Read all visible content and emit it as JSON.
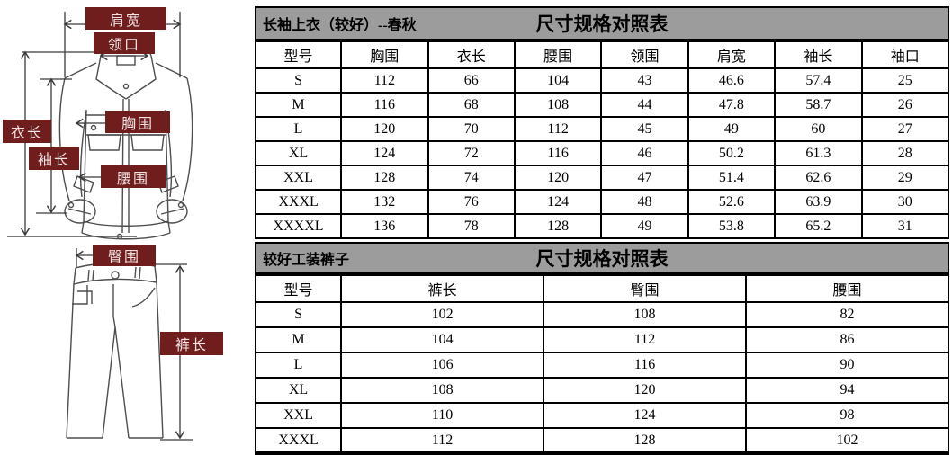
{
  "diagram": {
    "jacket_labels": {
      "shoulder_width": "肩宽",
      "collar": "领口",
      "chest": "胸围",
      "jacket_length": "衣长",
      "sleeve_length": "袖长",
      "waist": "腰围"
    },
    "pants_labels": {
      "hip": "臀围",
      "pants_length": "裤长"
    }
  },
  "jacket_table": {
    "title": "长袖上衣（较好）--春秋",
    "heading": "尺寸规格对照表",
    "columns": [
      "型号",
      "胸围",
      "衣长",
      "腰围",
      "领围",
      "肩宽",
      "袖长",
      "袖口"
    ],
    "rows": [
      [
        "S",
        "112",
        "66",
        "104",
        "43",
        "46.6",
        "57.4",
        "25"
      ],
      [
        "M",
        "116",
        "68",
        "108",
        "44",
        "47.8",
        "58.7",
        "26"
      ],
      [
        "L",
        "120",
        "70",
        "112",
        "45",
        "49",
        "60",
        "27"
      ],
      [
        "XL",
        "124",
        "72",
        "116",
        "46",
        "50.2",
        "61.3",
        "28"
      ],
      [
        "XXL",
        "128",
        "74",
        "120",
        "47",
        "51.4",
        "62.6",
        "29"
      ],
      [
        "XXXL",
        "132",
        "76",
        "124",
        "48",
        "52.6",
        "63.9",
        "30"
      ],
      [
        "XXXXL",
        "136",
        "78",
        "128",
        "49",
        "53.8",
        "65.2",
        "31"
      ]
    ]
  },
  "pants_table": {
    "title": "较好工装裤子",
    "heading": "尺寸规格对照表",
    "columns": [
      "型号",
      "裤长",
      "臀围",
      "腰围"
    ],
    "rows": [
      [
        "S",
        "102",
        "108",
        "82"
      ],
      [
        "M",
        "104",
        "112",
        "86"
      ],
      [
        "L",
        "106",
        "116",
        "90"
      ],
      [
        "XL",
        "108",
        "120",
        "94"
      ],
      [
        "XXL",
        "110",
        "124",
        "98"
      ],
      [
        "XXXL",
        "112",
        "128",
        "102"
      ]
    ]
  },
  "colors": {
    "label_box_bg": "#701d1d",
    "label_box_text": "#f2e4e4",
    "title_bar_bg": "#9c9c9c",
    "table_border": "#000000",
    "drawing_line": "#4e4e4e"
  }
}
